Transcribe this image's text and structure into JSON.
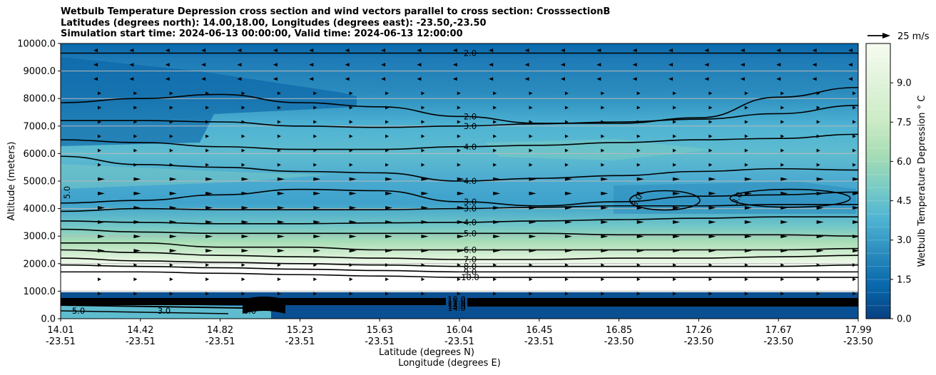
{
  "chart_data": {
    "type": "contour",
    "title_lines": [
      "Wetbulb Temperature Depression cross section and wind vectors parallel to cross section: CrosssectionB",
      "Latitudes (degrees north): 14.00,18.00, Longitudes (degrees east): -23.50,-23.50",
      "Simulation start time: 2024-06-13 00:00:00, Valid time: 2024-06-13 12:00:00"
    ],
    "ylabel": "Altitude (meters)",
    "xlabel_lat": "Latitude (degrees N)",
    "xlabel_lon": "Longitude (degrees E)",
    "ylim": [
      0,
      10000
    ],
    "y_ticks": [
      "0.0",
      "1000.0",
      "2000.0",
      "3000.0",
      "4000.0",
      "5000.0",
      "6000.0",
      "7000.0",
      "8000.0",
      "9000.0",
      "10000.0"
    ],
    "x_ticks": [
      {
        "lat": "14.01",
        "lon": "-23.51"
      },
      {
        "lat": "14.42",
        "lon": "-23.51"
      },
      {
        "lat": "14.82",
        "lon": "-23.51"
      },
      {
        "lat": "15.23",
        "lon": "-23.51"
      },
      {
        "lat": "15.63",
        "lon": "-23.51"
      },
      {
        "lat": "16.04",
        "lon": "-23.51"
      },
      {
        "lat": "16.45",
        "lon": "-23.51"
      },
      {
        "lat": "16.85",
        "lon": "-23.50"
      },
      {
        "lat": "17.26",
        "lon": "-23.50"
      },
      {
        "lat": "17.67",
        "lon": "-23.50"
      },
      {
        "lat": "17.99",
        "lon": "-23.50"
      }
    ],
    "colorbar": {
      "label": "Wetbulb Temperature Depression ° C",
      "range": [
        0,
        10.5
      ],
      "ticks": [
        "0.0",
        "1.5",
        "3.0",
        "4.5",
        "6.0",
        "7.5",
        "9.0"
      ]
    },
    "quiver_key": {
      "label": "25 m/s",
      "speed": 25
    },
    "contour_lines": [
      {
        "level": 2.0,
        "label": "2.0",
        "heights": [
          9650,
          9650,
          9650,
          9650,
          9650,
          9650,
          9650,
          9650,
          9650,
          9650,
          9650
        ]
      },
      {
        "level": 2.0,
        "label": "2.0",
        "heights": [
          7850,
          8000,
          8150,
          7850,
          7700,
          7350,
          7100,
          7100,
          7300,
          8050,
          8400
        ]
      },
      {
        "level": 3.0,
        "label": "3.0",
        "heights": [
          7200,
          7200,
          7150,
          7000,
          6950,
          7000,
          7080,
          7150,
          7250,
          7450,
          7750
        ]
      },
      {
        "level": 4.0,
        "label": "4.0",
        "heights": [
          6500,
          6400,
          6250,
          6150,
          6150,
          6250,
          6300,
          6400,
          6500,
          6550,
          6700
        ]
      },
      {
        "level": 4.0,
        "label": "4.0",
        "heights": [
          5900,
          5600,
          5500,
          5350,
          5300,
          5000,
          5100,
          5200,
          5350,
          5450,
          5400
        ]
      },
      {
        "level": 3.0,
        "label": "3.0",
        "heights": [
          4200,
          4300,
          4500,
          4700,
          4650,
          4250,
          4100,
          4250,
          4450,
          4500,
          4600
        ]
      },
      {
        "level": 3.0,
        "label": "3.0",
        "heights": [
          3900,
          4000,
          3960,
          3960,
          3960,
          4000,
          4050,
          4100,
          4100,
          4150,
          4150
        ]
      },
      {
        "level": 4.0,
        "label": "4.0",
        "heights": [
          3550,
          3500,
          3450,
          3450,
          3480,
          3500,
          3550,
          3600,
          3650,
          3700,
          3700
        ]
      },
      {
        "level": 5.0,
        "label": "5.0",
        "heights": [
          3250,
          3150,
          3100,
          3100,
          3100,
          3100,
          3100,
          3050,
          3050,
          3050,
          3000
        ]
      },
      {
        "level": 6.0,
        "label": "6.0",
        "heights": [
          2750,
          2750,
          2600,
          2600,
          2500,
          2500,
          2500,
          2500,
          2500,
          2500,
          2550
        ]
      },
      {
        "level": 7.0,
        "label": "7.0",
        "heights": [
          2500,
          2400,
          2300,
          2250,
          2200,
          2150,
          2150,
          2200,
          2200,
          2250,
          2300
        ]
      },
      {
        "level": 8.0,
        "label": "8.0",
        "heights": [
          2200,
          2100,
          2050,
          2000,
          1950,
          1900,
          1900,
          1900,
          1900,
          1900,
          1950
        ]
      },
      {
        "level": 9.0,
        "label": "9.0",
        "heights": [
          1950,
          1900,
          1850,
          1800,
          1750,
          1700,
          1700,
          1700,
          1700,
          1700,
          1700
        ]
      },
      {
        "level": 10.0,
        "label": "10.0",
        "heights": [
          1700,
          1700,
          1650,
          1600,
          1550,
          1500,
          1500,
          1500,
          1500,
          1500,
          1500
        ]
      }
    ],
    "closed_contours": [
      {
        "level": 3.0,
        "label": "3.0",
        "lat_range": [
          16.85,
          17.2
        ],
        "alt_range": [
          3950,
          4650
        ]
      },
      {
        "level": 3.0,
        "label": "3.0",
        "lat_range": [
          17.35,
          17.95
        ],
        "alt_range": [
          4050,
          4700
        ]
      }
    ],
    "surface_labels": [
      "10.0",
      "11.0",
      "12.0",
      "13.0",
      "14.0",
      "5.0",
      "3.0",
      "6.0"
    ],
    "inline_labels": [
      "5.0"
    ]
  }
}
